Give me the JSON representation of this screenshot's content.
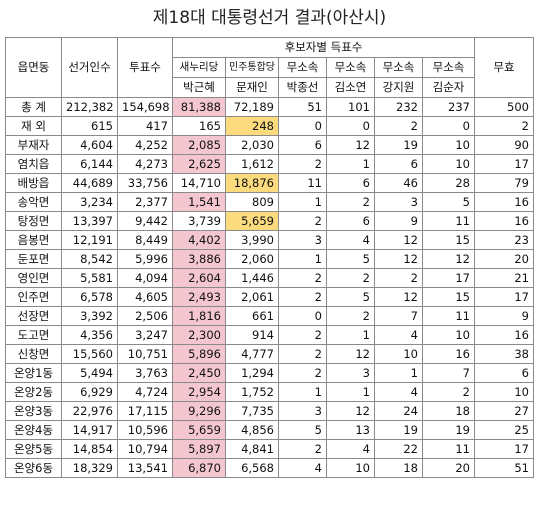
{
  "title": "제18대 대통령선거 결과(아산시)",
  "header": {
    "district": "읍면동",
    "voters": "선거인수",
    "ballots": "투표수",
    "group": "후보자별 득표수",
    "invalid": "무효",
    "candidates": [
      {
        "party": "새누리당",
        "name": "박근혜"
      },
      {
        "party": "민주통합당",
        "name": "문재인"
      },
      {
        "party": "무소속",
        "name": "박종선"
      },
      {
        "party": "무소속",
        "name": "김소연"
      },
      {
        "party": "무소속",
        "name": "강지원"
      },
      {
        "party": "무소속",
        "name": "김순자"
      }
    ]
  },
  "colors": {
    "park_winner": "#f4c6d0",
    "moon_winner": "#fcdb7e"
  },
  "rows": [
    {
      "name": "총  계",
      "voters": "212,382",
      "ballots": "154,698",
      "c": [
        "81,388",
        "72,189",
        "51",
        "101",
        "232",
        "237"
      ],
      "invalid": "500",
      "hl": "park"
    },
    {
      "name": "재  외",
      "voters": "615",
      "ballots": "417",
      "c": [
        "165",
        "248",
        "0",
        "0",
        "2",
        "0"
      ],
      "invalid": "2",
      "hl": "moon"
    },
    {
      "name": "부재자",
      "voters": "4,604",
      "ballots": "4,252",
      "c": [
        "2,085",
        "2,030",
        "6",
        "12",
        "19",
        "10"
      ],
      "invalid": "90",
      "hl": "park"
    },
    {
      "name": "염치읍",
      "voters": "6,144",
      "ballots": "4,273",
      "c": [
        "2,625",
        "1,612",
        "2",
        "1",
        "6",
        "10"
      ],
      "invalid": "17",
      "hl": "park"
    },
    {
      "name": "배방읍",
      "voters": "44,689",
      "ballots": "33,756",
      "c": [
        "14,710",
        "18,876",
        "11",
        "6",
        "46",
        "28"
      ],
      "invalid": "79",
      "hl": "moon"
    },
    {
      "name": "송악면",
      "voters": "3,234",
      "ballots": "2,377",
      "c": [
        "1,541",
        "809",
        "1",
        "2",
        "3",
        "5"
      ],
      "invalid": "16",
      "hl": "park"
    },
    {
      "name": "탕정면",
      "voters": "13,397",
      "ballots": "9,442",
      "c": [
        "3,739",
        "5,659",
        "2",
        "6",
        "9",
        "11"
      ],
      "invalid": "16",
      "hl": "moon"
    },
    {
      "name": "음봉면",
      "voters": "12,191",
      "ballots": "8,449",
      "c": [
        "4,402",
        "3,990",
        "3",
        "4",
        "12",
        "15"
      ],
      "invalid": "23",
      "hl": "park"
    },
    {
      "name": "둔포면",
      "voters": "8,542",
      "ballots": "5,996",
      "c": [
        "3,886",
        "2,060",
        "1",
        "5",
        "12",
        "12"
      ],
      "invalid": "20",
      "hl": "park"
    },
    {
      "name": "영인면",
      "voters": "5,581",
      "ballots": "4,094",
      "c": [
        "2,604",
        "1,446",
        "2",
        "2",
        "2",
        "17"
      ],
      "invalid": "21",
      "hl": "park"
    },
    {
      "name": "인주면",
      "voters": "6,578",
      "ballots": "4,605",
      "c": [
        "2,493",
        "2,061",
        "2",
        "5",
        "12",
        "15"
      ],
      "invalid": "17",
      "hl": "park"
    },
    {
      "name": "선장면",
      "voters": "3,392",
      "ballots": "2,506",
      "c": [
        "1,816",
        "661",
        "0",
        "2",
        "7",
        "11"
      ],
      "invalid": "9",
      "hl": "park"
    },
    {
      "name": "도고면",
      "voters": "4,356",
      "ballots": "3,247",
      "c": [
        "2,300",
        "914",
        "2",
        "1",
        "4",
        "10"
      ],
      "invalid": "16",
      "hl": "park"
    },
    {
      "name": "신창면",
      "voters": "15,560",
      "ballots": "10,751",
      "c": [
        "5,896",
        "4,777",
        "2",
        "12",
        "10",
        "16"
      ],
      "invalid": "38",
      "hl": "park"
    },
    {
      "name": "온양1동",
      "voters": "5,494",
      "ballots": "3,763",
      "c": [
        "2,450",
        "1,294",
        "2",
        "3",
        "1",
        "7"
      ],
      "invalid": "6",
      "hl": "park"
    },
    {
      "name": "온양2동",
      "voters": "6,929",
      "ballots": "4,724",
      "c": [
        "2,954",
        "1,752",
        "1",
        "1",
        "4",
        "2"
      ],
      "invalid": "10",
      "hl": "park"
    },
    {
      "name": "온양3동",
      "voters": "22,976",
      "ballots": "17,115",
      "c": [
        "9,296",
        "7,735",
        "3",
        "12",
        "24",
        "18"
      ],
      "invalid": "27",
      "hl": "park"
    },
    {
      "name": "온양4동",
      "voters": "14,917",
      "ballots": "10,596",
      "c": [
        "5,659",
        "4,856",
        "5",
        "13",
        "19",
        "19"
      ],
      "invalid": "25",
      "hl": "park"
    },
    {
      "name": "온양5동",
      "voters": "14,854",
      "ballots": "10,794",
      "c": [
        "5,897",
        "4,841",
        "2",
        "4",
        "22",
        "11"
      ],
      "invalid": "17",
      "hl": "park"
    },
    {
      "name": "온양6동",
      "voters": "18,329",
      "ballots": "13,541",
      "c": [
        "6,870",
        "6,568",
        "4",
        "10",
        "18",
        "20"
      ],
      "invalid": "51",
      "hl": "park"
    }
  ]
}
